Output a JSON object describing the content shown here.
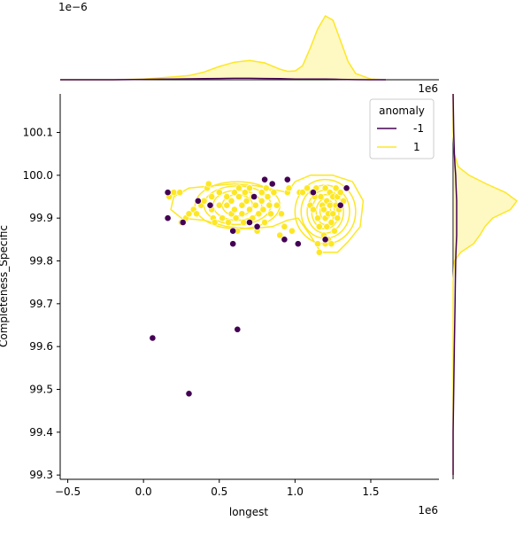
{
  "chart_data": {
    "type": "scatter",
    "title": "",
    "xlabel": "longest",
    "ylabel": "Completeness_Specific",
    "x_multiplier": "1e6",
    "y_multiplier": "1e6",
    "top_marginal_multiplier": "1e−6",
    "xlim": [
      -0.55,
      1.95
    ],
    "ylim": [
      99.29,
      100.19
    ],
    "xticks": [
      "−0.5",
      "0.0",
      "0.5",
      "1.0",
      "1.5"
    ],
    "xtick_values": [
      -0.5,
      0.0,
      0.5,
      1.0,
      1.5
    ],
    "yticks": [
      "99.3",
      "99.4",
      "99.5",
      "99.6",
      "99.7",
      "99.8",
      "99.9",
      "100.0",
      "100.1"
    ],
    "ytick_values": [
      99.3,
      99.4,
      99.5,
      99.6,
      99.7,
      99.8,
      99.9,
      100.0,
      100.1
    ],
    "grid": false,
    "legend": {
      "title": "anomaly",
      "placement": "top-right",
      "entries": [
        {
          "label": "-1",
          "color": "#440154"
        },
        {
          "label": "1",
          "color": "#fde725"
        }
      ]
    },
    "series": [
      {
        "name": "1",
        "color": "#fde725",
        "points": [
          [
            0.17,
            99.95
          ],
          [
            0.2,
            99.96
          ],
          [
            0.24,
            99.96
          ],
          [
            0.25,
            99.89
          ],
          [
            0.28,
            99.9
          ],
          [
            0.3,
            99.91
          ],
          [
            0.33,
            99.92
          ],
          [
            0.35,
            99.91
          ],
          [
            0.38,
            99.93
          ],
          [
            0.4,
            99.94
          ],
          [
            0.42,
            99.97
          ],
          [
            0.43,
            99.98
          ],
          [
            0.45,
            99.95
          ],
          [
            0.45,
            99.92
          ],
          [
            0.46,
            99.9
          ],
          [
            0.47,
            99.89
          ],
          [
            0.5,
            99.93
          ],
          [
            0.5,
            99.96
          ],
          [
            0.52,
            99.9
          ],
          [
            0.55,
            99.93
          ],
          [
            0.55,
            99.95
          ],
          [
            0.56,
            99.89
          ],
          [
            0.58,
            99.91
          ],
          [
            0.58,
            99.94
          ],
          [
            0.6,
            99.96
          ],
          [
            0.6,
            99.92
          ],
          [
            0.61,
            99.9
          ],
          [
            0.62,
            99.87
          ],
          [
            0.63,
            99.97
          ],
          [
            0.63,
            99.95
          ],
          [
            0.65,
            99.93
          ],
          [
            0.65,
            99.91
          ],
          [
            0.66,
            99.89
          ],
          [
            0.67,
            99.96
          ],
          [
            0.68,
            99.94
          ],
          [
            0.7,
            99.92
          ],
          [
            0.7,
            99.97
          ],
          [
            0.72,
            99.9
          ],
          [
            0.72,
            99.95
          ],
          [
            0.74,
            99.93
          ],
          [
            0.75,
            99.87
          ],
          [
            0.76,
            99.91
          ],
          [
            0.78,
            99.96
          ],
          [
            0.78,
            99.94
          ],
          [
            0.79,
            99.92
          ],
          [
            0.8,
            99.89
          ],
          [
            0.81,
            99.97
          ],
          [
            0.82,
            99.95
          ],
          [
            0.83,
            99.93
          ],
          [
            0.84,
            99.91
          ],
          [
            0.86,
            99.96
          ],
          [
            0.88,
            99.93
          ],
          [
            0.9,
            99.86
          ],
          [
            0.91,
            99.91
          ],
          [
            0.93,
            99.88
          ],
          [
            0.95,
            99.96
          ],
          [
            0.96,
            99.97
          ],
          [
            0.98,
            99.87
          ],
          [
            1.03,
            99.96
          ],
          [
            1.05,
            99.96
          ],
          [
            1.08,
            99.97
          ],
          [
            1.1,
            99.93
          ],
          [
            1.11,
            99.96
          ],
          [
            1.12,
            99.92
          ],
          [
            1.13,
            99.95
          ],
          [
            1.14,
            99.97
          ],
          [
            1.15,
            99.9
          ],
          [
            1.15,
            99.84
          ],
          [
            1.16,
            99.82
          ],
          [
            1.16,
            99.88
          ],
          [
            1.17,
            99.95
          ],
          [
            1.18,
            99.93
          ],
          [
            1.19,
            99.92
          ],
          [
            1.19,
            99.86
          ],
          [
            1.2,
            99.9
          ],
          [
            1.2,
            99.84
          ],
          [
            1.2,
            99.97
          ],
          [
            1.21,
            99.94
          ],
          [
            1.21,
            99.88
          ],
          [
            1.22,
            99.91
          ],
          [
            1.22,
            99.85
          ],
          [
            1.23,
            99.96
          ],
          [
            1.23,
            99.93
          ],
          [
            1.24,
            99.89
          ],
          [
            1.24,
            99.84
          ],
          [
            1.25,
            99.95
          ],
          [
            1.25,
            99.91
          ],
          [
            1.26,
            99.87
          ],
          [
            1.27,
            99.93
          ],
          [
            1.27,
            99.97
          ],
          [
            1.28,
            99.9
          ],
          [
            1.28,
            99.95
          ],
          [
            1.29,
            99.92
          ],
          [
            1.3,
            99.96
          ],
          [
            1.32,
            99.94
          ]
        ]
      },
      {
        "name": "-1",
        "color": "#440154",
        "points": [
          [
            0.06,
            99.62
          ],
          [
            0.3,
            99.49
          ],
          [
            0.62,
            99.64
          ],
          [
            0.16,
            99.96
          ],
          [
            0.16,
            99.9
          ],
          [
            0.26,
            99.89
          ],
          [
            0.36,
            99.94
          ],
          [
            0.44,
            99.93
          ],
          [
            0.59,
            99.87
          ],
          [
            0.59,
            99.84
          ],
          [
            0.7,
            99.89
          ],
          [
            0.73,
            99.95
          ],
          [
            0.75,
            99.88
          ],
          [
            0.8,
            99.99
          ],
          [
            0.85,
            99.98
          ],
          [
            0.93,
            99.85
          ],
          [
            0.95,
            99.99
          ],
          [
            1.02,
            99.84
          ],
          [
            1.12,
            99.96
          ],
          [
            1.2,
            99.85
          ],
          [
            1.3,
            99.93
          ],
          [
            1.34,
            99.97
          ]
        ]
      }
    ],
    "kde_contour_color": "#fde725",
    "marginal_x": {
      "x": [
        -0.55,
        -0.4,
        -0.2,
        0.0,
        0.1,
        0.2,
        0.3,
        0.4,
        0.5,
        0.6,
        0.7,
        0.8,
        0.9,
        0.95,
        1.0,
        1.05,
        1.1,
        1.15,
        1.2,
        1.25,
        1.3,
        1.35,
        1.4,
        1.5,
        1.6
      ],
      "density_1": [
        0.0,
        0.0,
        0.0,
        0.02,
        0.05,
        0.08,
        0.12,
        0.22,
        0.38,
        0.5,
        0.55,
        0.48,
        0.3,
        0.24,
        0.25,
        0.4,
        0.9,
        1.45,
        1.82,
        1.7,
        1.12,
        0.52,
        0.18,
        0.02,
        0.0
      ],
      "density_minus1": [
        0.0,
        0.0,
        0.0,
        0.01,
        0.015,
        0.02,
        0.025,
        0.03,
        0.035,
        0.04,
        0.04,
        0.035,
        0.03,
        0.025,
        0.02,
        0.02,
        0.02,
        0.02,
        0.02,
        0.015,
        0.01,
        0.005,
        0.002,
        0.0,
        0.0
      ]
    },
    "marginal_y": {
      "y": [
        99.3,
        99.4,
        99.5,
        99.6,
        99.7,
        99.75,
        99.8,
        99.82,
        99.84,
        99.86,
        99.88,
        99.9,
        99.92,
        99.94,
        99.96,
        99.98,
        100.0,
        100.02,
        100.05,
        100.1,
        100.19
      ],
      "density_1": [
        0,
        0,
        0,
        0,
        0,
        0,
        0.02,
        0.12,
        0.32,
        0.42,
        0.5,
        0.62,
        0.9,
        1.0,
        0.82,
        0.52,
        0.25,
        0.08,
        0.02,
        0,
        0
      ],
      "density_minus1": [
        0,
        0,
        0.01,
        0.02,
        0.03,
        0.035,
        0.04,
        0.045,
        0.05,
        0.055,
        0.055,
        0.055,
        0.055,
        0.055,
        0.05,
        0.045,
        0.04,
        0.03,
        0.02,
        0.01,
        0.0
      ]
    }
  }
}
